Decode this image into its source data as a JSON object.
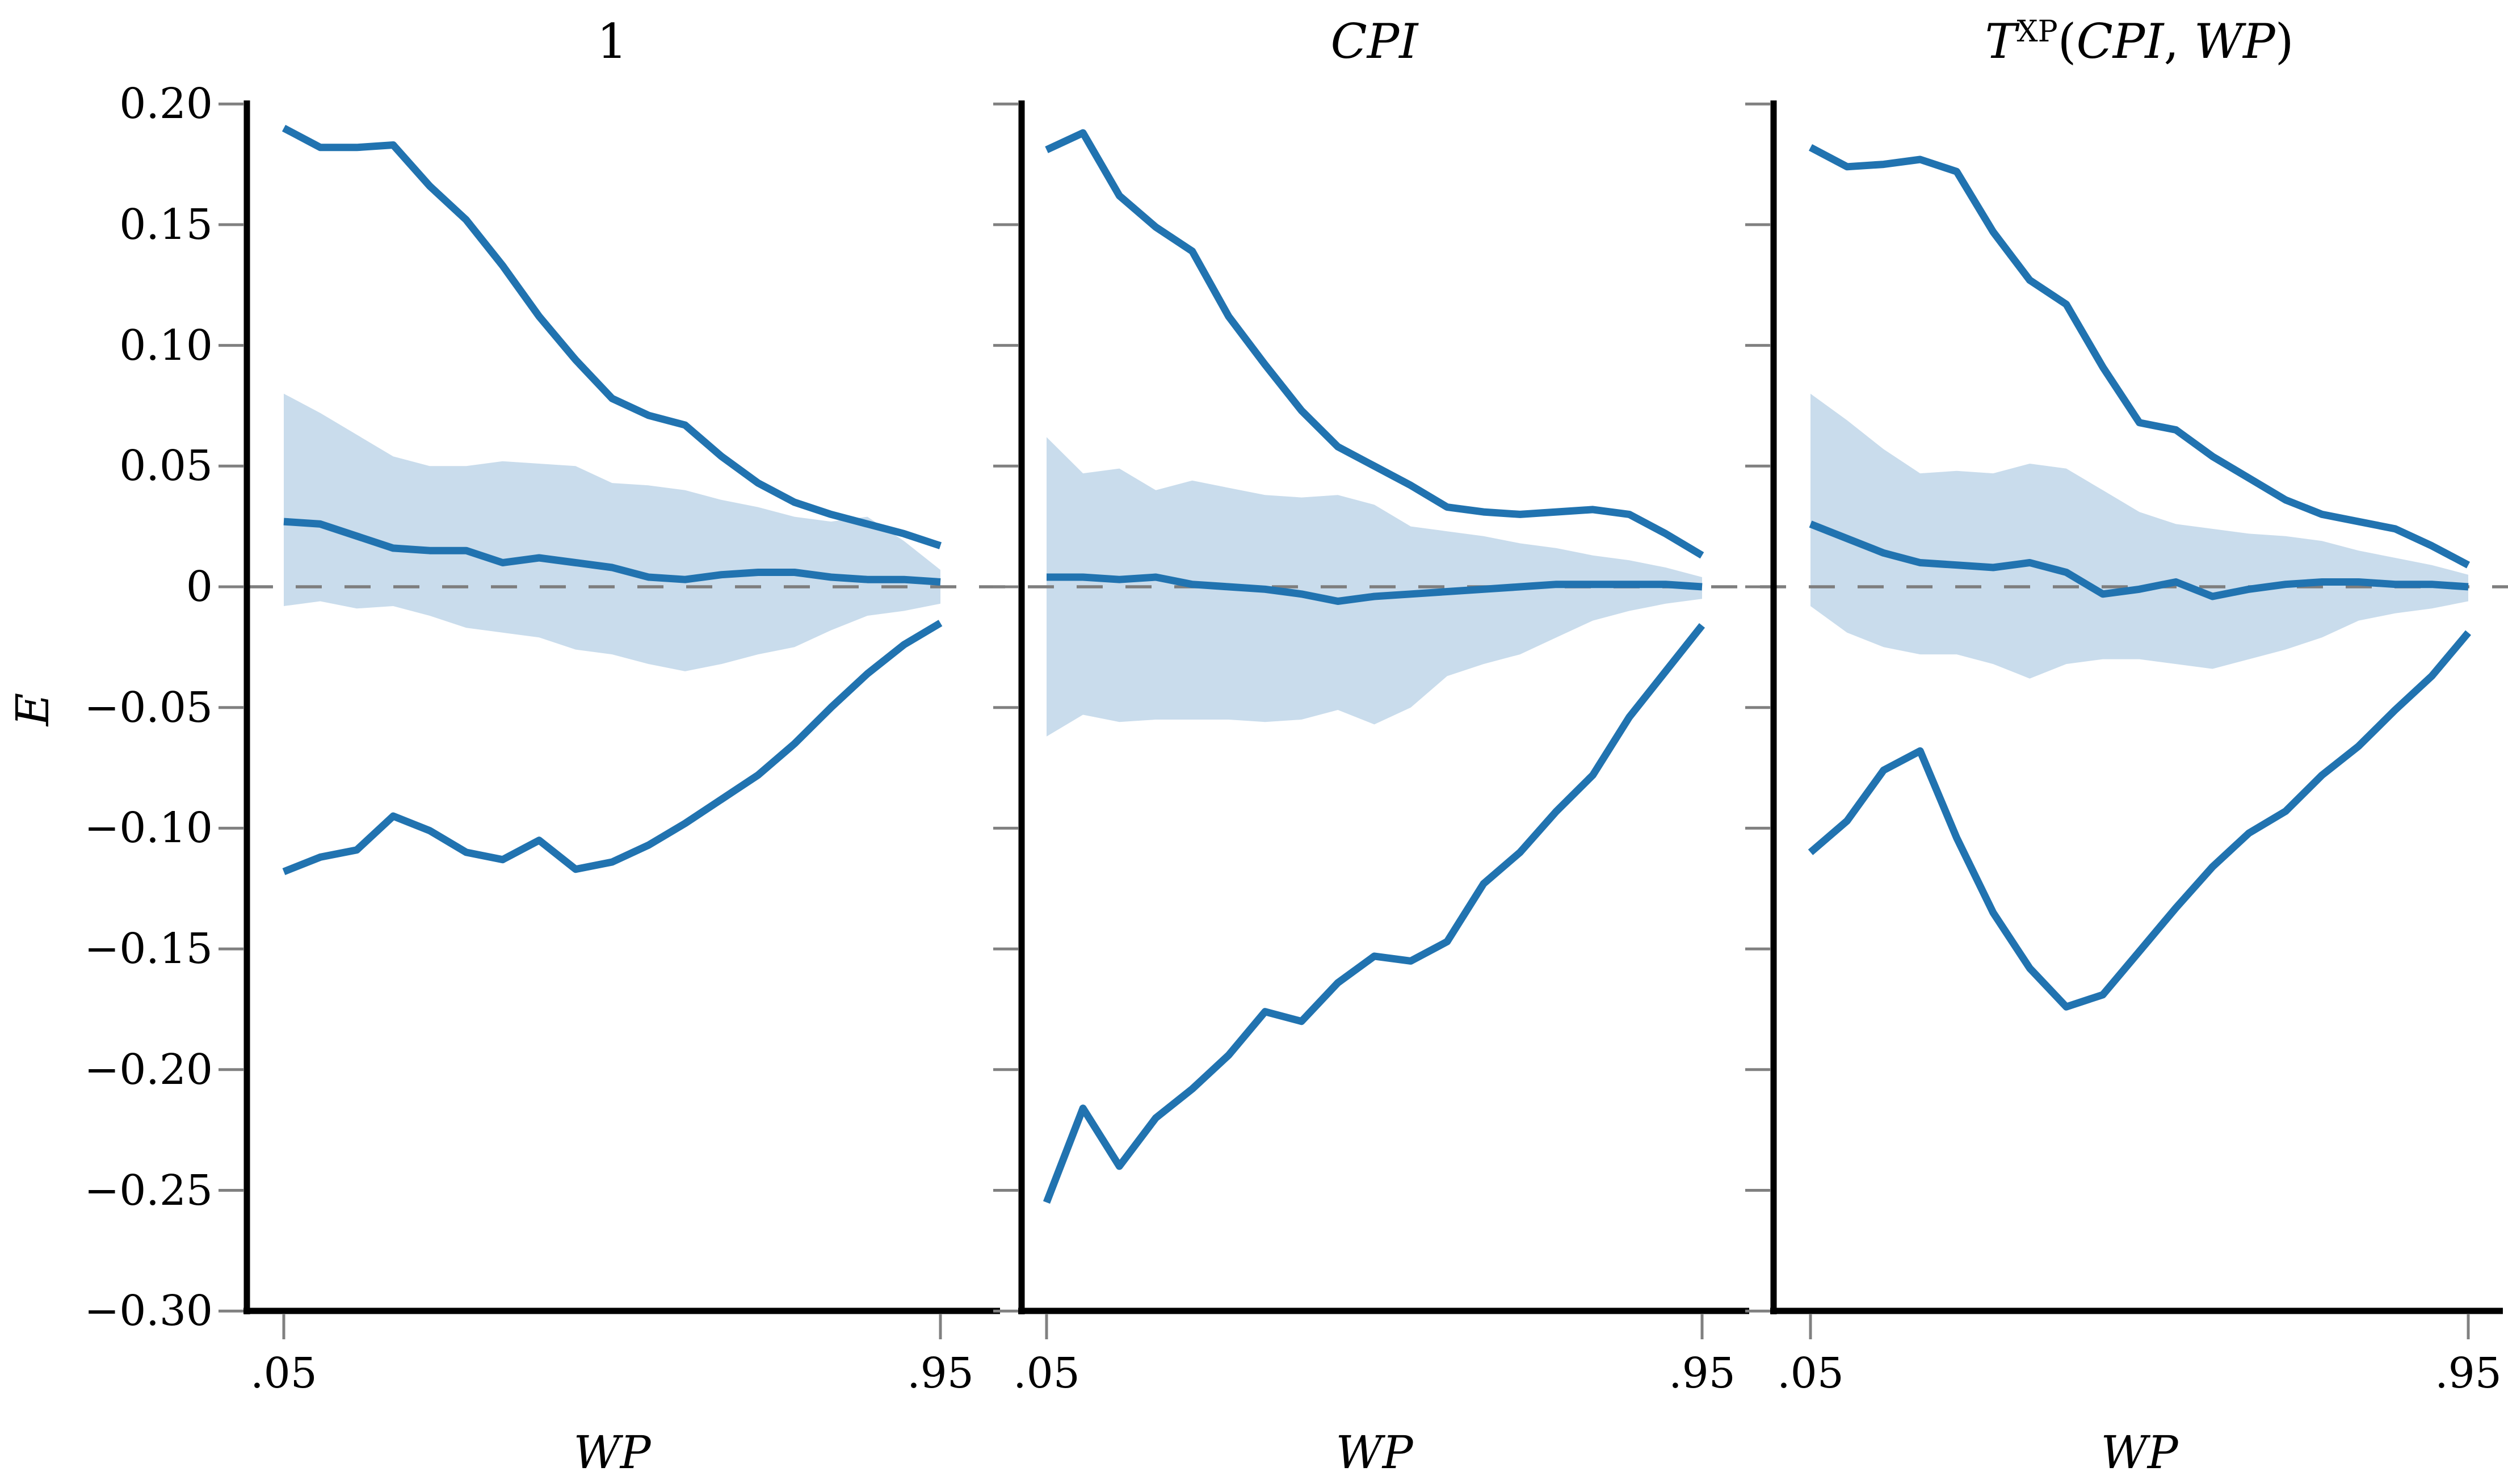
{
  "figure": {
    "y_axis_label": "E",
    "x_axis_label": "WP",
    "x_tick_labels": [
      ".05",
      ".95"
    ],
    "y_ticks": [
      {
        "value": 0.2,
        "label": "0.20"
      },
      {
        "value": 0.15,
        "label": "0.15"
      },
      {
        "value": 0.1,
        "label": "0.10"
      },
      {
        "value": 0.05,
        "label": "0.05"
      },
      {
        "value": 0.0,
        "label": "0"
      },
      {
        "value": -0.05,
        "label": "−0.05"
      },
      {
        "value": -0.1,
        "label": "−0.10"
      },
      {
        "value": -0.15,
        "label": "−0.15"
      },
      {
        "value": -0.2,
        "label": "−0.20"
      },
      {
        "value": -0.25,
        "label": "−0.25"
      },
      {
        "value": -0.3,
        "label": "−0.30"
      }
    ],
    "colors": {
      "line": "#2173b0",
      "band": "#c9dcec",
      "zero_line": "#7e7e7e",
      "axis": "#000000",
      "tick": "#808080"
    }
  },
  "chart_data": [
    {
      "type": "line",
      "title": "1",
      "title_parts": [
        {
          "text": "1",
          "style": "normal"
        }
      ],
      "xlabel": "WP",
      "ylabel": "E",
      "xlim": [
        0.05,
        0.95
      ],
      "ylim": [
        -0.3,
        0.2
      ],
      "grid": false,
      "legend": "none",
      "zero_reference_line": true,
      "x": [
        0.05,
        0.1,
        0.15,
        0.2,
        0.25,
        0.3,
        0.35,
        0.4,
        0.45,
        0.5,
        0.55,
        0.6,
        0.65,
        0.7,
        0.75,
        0.8,
        0.85,
        0.9,
        0.95
      ],
      "series": [
        {
          "name": "upper_ci_line",
          "values": [
            0.19,
            0.182,
            0.182,
            0.183,
            0.166,
            0.152,
            0.133,
            0.112,
            0.094,
            0.078,
            0.071,
            0.067,
            0.054,
            0.043,
            0.035,
            0.03,
            0.026,
            0.022,
            0.017
          ]
        },
        {
          "name": "band_upper",
          "values": [
            0.08,
            0.072,
            0.063,
            0.054,
            0.05,
            0.05,
            0.052,
            0.051,
            0.05,
            0.043,
            0.042,
            0.04,
            0.036,
            0.033,
            0.029,
            0.027,
            0.029,
            0.019,
            0.007
          ]
        },
        {
          "name": "point_estimate",
          "values": [
            0.027,
            0.026,
            0.021,
            0.016,
            0.015,
            0.015,
            0.01,
            0.012,
            0.01,
            0.008,
            0.004,
            0.003,
            0.005,
            0.006,
            0.006,
            0.004,
            0.003,
            0.003,
            0.002
          ]
        },
        {
          "name": "band_lower",
          "values": [
            -0.008,
            -0.006,
            -0.009,
            -0.008,
            -0.012,
            -0.017,
            -0.019,
            -0.021,
            -0.026,
            -0.028,
            -0.032,
            -0.035,
            -0.032,
            -0.028,
            -0.025,
            -0.018,
            -0.012,
            -0.01,
            -0.007
          ]
        },
        {
          "name": "lower_ci_line",
          "values": [
            -0.118,
            -0.112,
            -0.109,
            -0.095,
            -0.101,
            -0.11,
            -0.113,
            -0.105,
            -0.117,
            -0.114,
            -0.107,
            -0.098,
            -0.088,
            -0.078,
            -0.065,
            -0.05,
            -0.036,
            -0.024,
            -0.015
          ]
        }
      ]
    },
    {
      "type": "line",
      "title": "CPI",
      "title_parts": [
        {
          "text": "CPI",
          "style": "italic"
        }
      ],
      "xlabel": "WP",
      "ylabel": "E",
      "xlim": [
        0.05,
        0.95
      ],
      "ylim": [
        -0.3,
        0.2
      ],
      "grid": false,
      "legend": "none",
      "zero_reference_line": true,
      "x": [
        0.05,
        0.1,
        0.15,
        0.2,
        0.25,
        0.3,
        0.35,
        0.4,
        0.45,
        0.5,
        0.55,
        0.6,
        0.65,
        0.7,
        0.75,
        0.8,
        0.85,
        0.9,
        0.95
      ],
      "series": [
        {
          "name": "upper_ci_line",
          "values": [
            0.181,
            0.188,
            0.162,
            0.149,
            0.139,
            0.112,
            0.092,
            0.073,
            0.058,
            0.05,
            0.042,
            0.033,
            0.031,
            0.03,
            0.031,
            0.032,
            0.03,
            0.022,
            0.013
          ]
        },
        {
          "name": "band_upper",
          "values": [
            0.062,
            0.047,
            0.049,
            0.04,
            0.044,
            0.041,
            0.038,
            0.037,
            0.038,
            0.034,
            0.025,
            0.023,
            0.021,
            0.018,
            0.016,
            0.013,
            0.011,
            0.008,
            0.004
          ]
        },
        {
          "name": "point_estimate",
          "values": [
            0.004,
            0.004,
            0.003,
            0.004,
            0.001,
            0.0,
            -0.001,
            -0.003,
            -0.006,
            -0.004,
            -0.003,
            -0.002,
            -0.001,
            0.0,
            0.001,
            0.001,
            0.001,
            0.001,
            0.0
          ]
        },
        {
          "name": "band_lower",
          "values": [
            -0.062,
            -0.053,
            -0.056,
            -0.055,
            -0.055,
            -0.055,
            -0.056,
            -0.055,
            -0.051,
            -0.057,
            -0.05,
            -0.037,
            -0.032,
            -0.028,
            -0.021,
            -0.014,
            -0.01,
            -0.007,
            -0.005
          ]
        },
        {
          "name": "lower_ci_line",
          "values": [
            -0.255,
            -0.216,
            -0.24,
            -0.22,
            -0.208,
            -0.194,
            -0.176,
            -0.18,
            -0.164,
            -0.153,
            -0.155,
            -0.147,
            -0.123,
            -0.11,
            -0.093,
            -0.078,
            -0.054,
            -0.035,
            -0.016
          ]
        }
      ]
    },
    {
      "type": "line",
      "title": "T^XP(CPI, WP)",
      "title_parts": [
        {
          "text": "T",
          "style": "italic"
        },
        {
          "text": "XP",
          "style": "sup"
        },
        {
          "text": "(",
          "style": "normal"
        },
        {
          "text": "CPI",
          "style": "italic"
        },
        {
          "text": ",",
          "style": "normal"
        },
        {
          "text": " WP",
          "style": "italic"
        },
        {
          "text": ")",
          "style": "normal"
        }
      ],
      "xlabel": "WP",
      "ylabel": "E",
      "xlim": [
        0.05,
        0.95
      ],
      "ylim": [
        -0.3,
        0.2
      ],
      "grid": false,
      "legend": "none",
      "zero_reference_line": true,
      "x": [
        0.05,
        0.1,
        0.15,
        0.2,
        0.25,
        0.3,
        0.35,
        0.4,
        0.45,
        0.5,
        0.55,
        0.6,
        0.65,
        0.7,
        0.75,
        0.8,
        0.85,
        0.9,
        0.95
      ],
      "series": [
        {
          "name": "upper_ci_line",
          "values": [
            0.182,
            0.174,
            0.175,
            0.177,
            0.172,
            0.147,
            0.127,
            0.117,
            0.091,
            0.068,
            0.065,
            0.054,
            0.045,
            0.036,
            0.03,
            0.027,
            0.024,
            0.017,
            0.009
          ]
        },
        {
          "name": "band_upper",
          "values": [
            0.08,
            0.069,
            0.057,
            0.047,
            0.048,
            0.047,
            0.051,
            0.049,
            0.04,
            0.031,
            0.026,
            0.024,
            0.022,
            0.021,
            0.019,
            0.015,
            0.012,
            0.009,
            0.005
          ]
        },
        {
          "name": "point_estimate",
          "values": [
            0.026,
            0.02,
            0.014,
            0.01,
            0.009,
            0.008,
            0.01,
            0.006,
            -0.003,
            -0.001,
            0.002,
            -0.004,
            -0.001,
            0.001,
            0.002,
            0.002,
            0.001,
            0.001,
            0.0
          ]
        },
        {
          "name": "band_lower",
          "values": [
            -0.008,
            -0.019,
            -0.025,
            -0.028,
            -0.028,
            -0.032,
            -0.038,
            -0.032,
            -0.03,
            -0.03,
            -0.032,
            -0.034,
            -0.03,
            -0.026,
            -0.021,
            -0.014,
            -0.011,
            -0.009,
            -0.006
          ]
        },
        {
          "name": "lower_ci_line",
          "values": [
            -0.11,
            -0.097,
            -0.076,
            -0.068,
            -0.104,
            -0.135,
            -0.158,
            -0.174,
            -0.169,
            -0.151,
            -0.133,
            -0.116,
            -0.102,
            -0.093,
            -0.078,
            -0.066,
            -0.051,
            -0.037,
            -0.019
          ]
        }
      ]
    }
  ]
}
